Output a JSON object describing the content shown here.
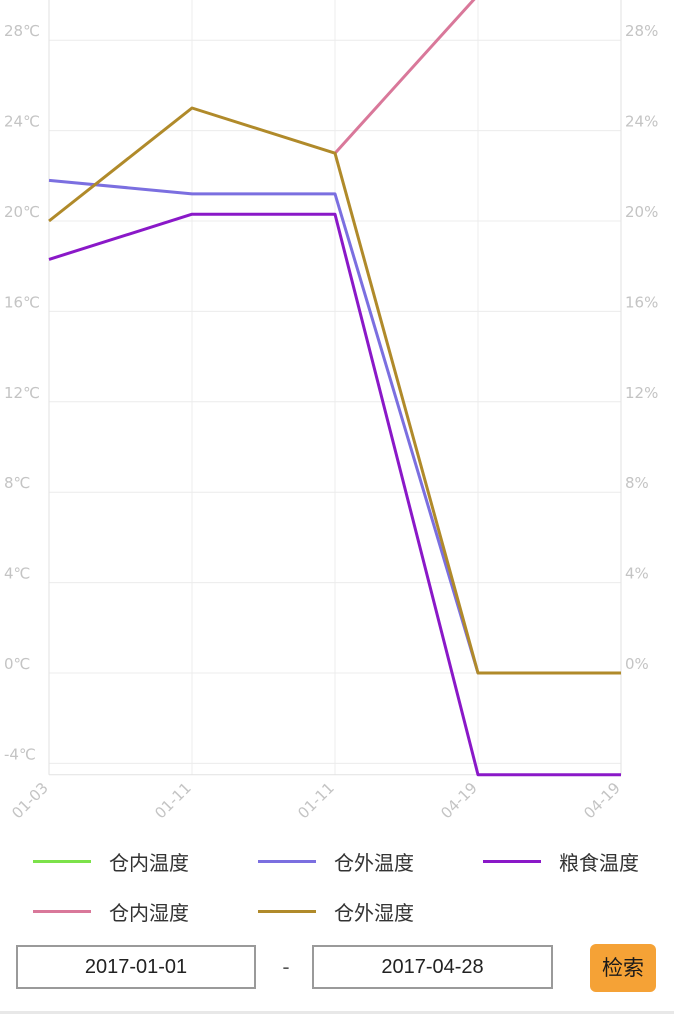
{
  "chart_data": {
    "type": "line",
    "categories": [
      "01-03",
      "01-11",
      "01-11",
      "04-19",
      "04-19"
    ],
    "y_left": {
      "unit": "℃",
      "range": [
        -4.5,
        30
      ],
      "ticks": [
        "-4℃",
        "0℃",
        "4℃",
        "8℃",
        "12℃",
        "16℃",
        "20℃",
        "24℃",
        "28℃"
      ]
    },
    "y_right": {
      "unit": "%",
      "range": [
        -4.5,
        30
      ],
      "ticks": [
        "0%",
        "4%",
        "8%",
        "12%",
        "16%",
        "20%",
        "24%",
        "28%"
      ]
    },
    "grid": true,
    "series": [
      {
        "name": "仓内温度",
        "axis": "left",
        "color": "#7ce24a",
        "values": [
          null,
          null,
          null,
          null,
          null
        ]
      },
      {
        "name": "仓外温度",
        "axis": "left",
        "color": "#7b6fe0",
        "values": [
          21.8,
          21.2,
          21.2,
          0,
          0
        ]
      },
      {
        "name": "粮食温度",
        "axis": "left",
        "color": "#8a18c8",
        "values": [
          18.3,
          20.3,
          20.3,
          -4.5,
          -4.5
        ]
      },
      {
        "name": "仓内湿度",
        "axis": "right",
        "color": "#d9789a",
        "values": [
          null,
          null,
          23,
          30,
          30
        ]
      },
      {
        "name": "仓外湿度",
        "axis": "right",
        "color": "#b08a2a",
        "values": [
          20,
          25,
          23,
          0,
          0
        ]
      }
    ]
  },
  "controls": {
    "start_date": "2017-01-01",
    "separator": "-",
    "end_date": "2017-04-28",
    "search_label": "检索"
  }
}
